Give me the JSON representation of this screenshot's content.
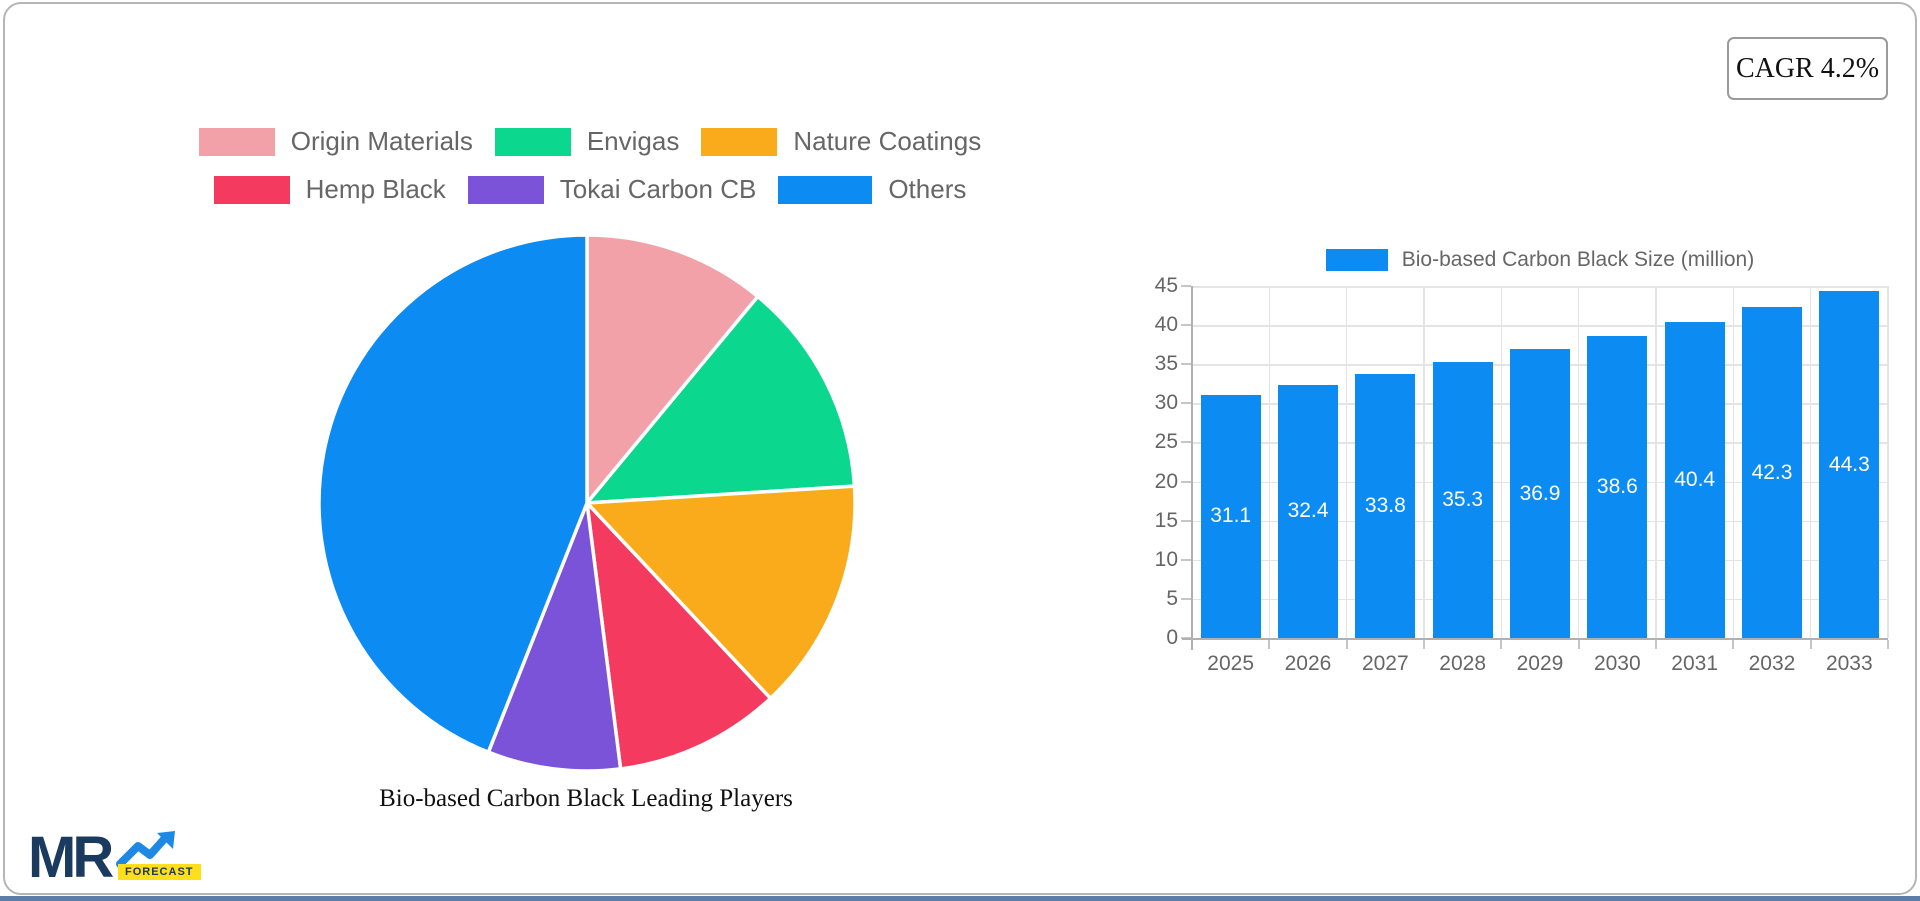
{
  "cagr_badge": {
    "label": "CAGR 4.2%"
  },
  "logo": {
    "mr": "MR",
    "forecast": "FORECAST"
  },
  "colors": {
    "accent_bar": "#5b7da7",
    "bar_blue": "#0c8cf2",
    "logo_navy": "#1b3a60",
    "logo_blue": "#1e88e5",
    "logo_yellow": "#ffde1a"
  },
  "chart_data": [
    {
      "type": "pie",
      "title": "Bio-based Carbon Black Leading Players",
      "labels": [
        "Origin Materials",
        "Envigas",
        "Nature Coatings",
        "Hemp Black",
        "Tokai Carbon CB",
        "Others"
      ],
      "values": [
        11,
        13,
        14,
        10,
        8,
        44
      ],
      "unit": "% (estimated from slice angles)",
      "colors": [
        "#f3a1a9",
        "#0bd78f",
        "#faab1c",
        "#f43a5e",
        "#7b53d8",
        "#0c8cf2"
      ],
      "legend_rows": [
        [
          0,
          1,
          2
        ],
        [
          3,
          4,
          5
        ]
      ],
      "legend_swatch_widths": [
        76,
        76,
        76,
        76,
        76,
        94
      ],
      "legend_position": "top"
    },
    {
      "type": "bar",
      "legend_label": "Bio-based Carbon Black Size (million)",
      "categories": [
        "2025",
        "2026",
        "2027",
        "2028",
        "2029",
        "2030",
        "2031",
        "2032",
        "2033"
      ],
      "values": [
        31.1,
        32.4,
        33.8,
        35.3,
        36.9,
        38.6,
        40.4,
        42.3,
        44.3
      ],
      "bar_color": "#0c8cf2",
      "ylim": [
        0,
        45
      ],
      "ytick_step": 5,
      "grid": true,
      "value_labels": "white, centered inside bars",
      "legend_position": "top"
    }
  ]
}
